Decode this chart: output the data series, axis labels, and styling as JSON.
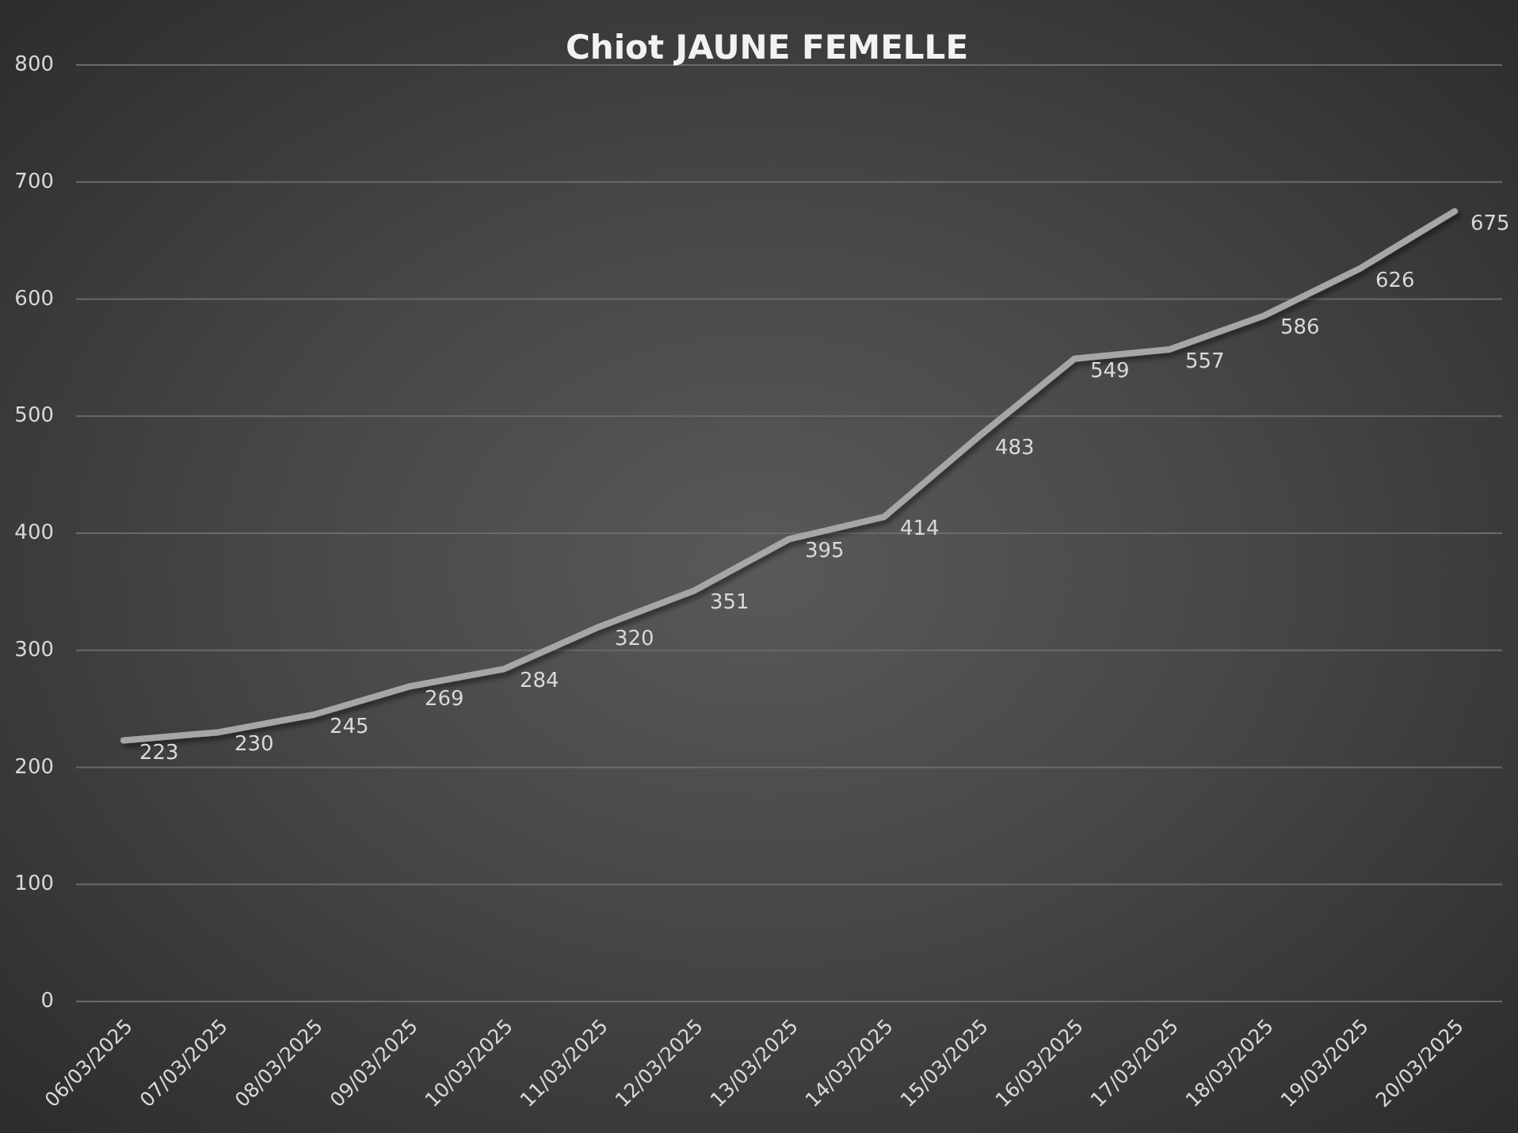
{
  "chart_data": {
    "type": "line",
    "title": "Chiot JAUNE FEMELLE",
    "categories": [
      "06/03/2025",
      "07/03/2025",
      "08/03/2025",
      "09/03/2025",
      "10/03/2025",
      "11/03/2025",
      "12/03/2025",
      "13/03/2025",
      "14/03/2025",
      "15/03/2025",
      "16/03/2025",
      "17/03/2025",
      "18/03/2025",
      "19/03/2025",
      "20/03/2025"
    ],
    "series": [
      {
        "color": "#a6a6a6",
        "values": [
          223,
          230,
          245,
          269,
          284,
          320,
          351,
          395,
          414,
          483,
          549,
          557,
          586,
          626,
          675
        ]
      }
    ],
    "ylim": [
      0,
      800
    ],
    "yticks": [
      0,
      100,
      200,
      300,
      400,
      500,
      600,
      700,
      800
    ],
    "grid": "y",
    "data_labels": true
  }
}
